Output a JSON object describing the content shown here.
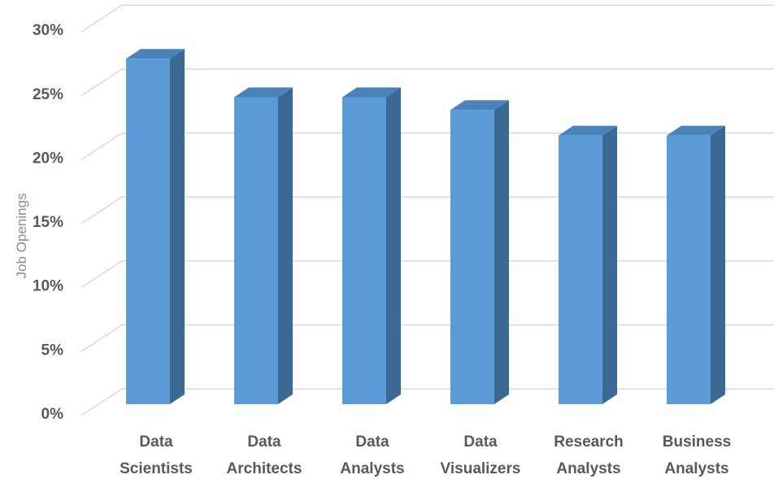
{
  "chart_data": {
    "type": "bar",
    "categories": [
      [
        "Data",
        "Scientists"
      ],
      [
        "Data",
        "Architects"
      ],
      [
        "Data",
        "Analysts"
      ],
      [
        "Data",
        "Visualizers"
      ],
      [
        "Research",
        "Analysts"
      ],
      [
        "Business",
        "Analysts"
      ]
    ],
    "values": [
      27,
      24,
      24,
      23,
      21,
      21
    ],
    "ylabel": "Job Openings",
    "ylim": [
      0,
      30
    ],
    "yticks": [
      "0%",
      "5%",
      "10%",
      "15%",
      "20%",
      "25%",
      "30%"
    ],
    "grid": true,
    "style": "3d-column",
    "colors": {
      "front": "#5b9bd5",
      "side": "#3a6a94",
      "top": "#4a83ba",
      "grid": "#d9d9d9"
    }
  }
}
